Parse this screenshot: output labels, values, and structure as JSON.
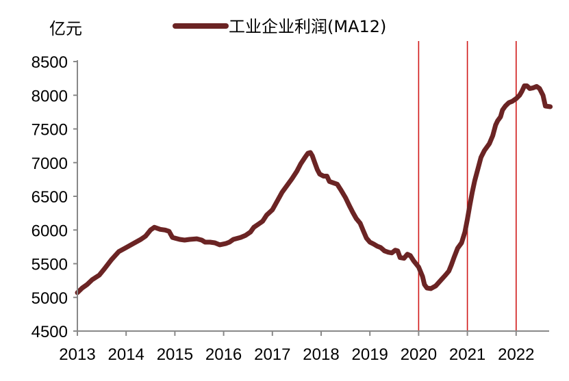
{
  "chart_data": {
    "type": "line",
    "y_unit_label": "亿元",
    "legend_position": "top",
    "grid": false,
    "ylim": [
      4500,
      8500
    ],
    "y_ticks": [
      "4500",
      "5000",
      "5500",
      "6000",
      "6500",
      "7000",
      "7500",
      "8000",
      "8500"
    ],
    "x_tick_labels": [
      "2013",
      "2014",
      "2015",
      "2016",
      "2017",
      "2018",
      "2019",
      "2020",
      "2021",
      "2022"
    ],
    "xlim": [
      2013,
      2022.7
    ],
    "vertical_markers": [
      2020,
      2021,
      2022
    ],
    "series": [
      {
        "name": "工业企业利润(MA12)",
        "color": "#6b2424",
        "points": [
          [
            2013.0,
            5070
          ],
          [
            2013.1,
            5140
          ],
          [
            2013.2,
            5190
          ],
          [
            2013.3,
            5260
          ],
          [
            2013.45,
            5330
          ],
          [
            2013.55,
            5420
          ],
          [
            2013.7,
            5560
          ],
          [
            2013.85,
            5680
          ],
          [
            2014.0,
            5740
          ],
          [
            2014.15,
            5800
          ],
          [
            2014.3,
            5860
          ],
          [
            2014.4,
            5910
          ],
          [
            2014.5,
            6000
          ],
          [
            2014.58,
            6040
          ],
          [
            2014.7,
            6010
          ],
          [
            2014.8,
            6000
          ],
          [
            2014.88,
            5980
          ],
          [
            2014.95,
            5890
          ],
          [
            2015.1,
            5860
          ],
          [
            2015.2,
            5850
          ],
          [
            2015.3,
            5860
          ],
          [
            2015.45,
            5870
          ],
          [
            2015.55,
            5850
          ],
          [
            2015.62,
            5820
          ],
          [
            2015.72,
            5820
          ],
          [
            2015.82,
            5810
          ],
          [
            2015.92,
            5780
          ],
          [
            2016.05,
            5800
          ],
          [
            2016.12,
            5820
          ],
          [
            2016.2,
            5860
          ],
          [
            2016.35,
            5890
          ],
          [
            2016.45,
            5920
          ],
          [
            2016.55,
            5970
          ],
          [
            2016.62,
            6040
          ],
          [
            2016.72,
            6090
          ],
          [
            2016.8,
            6130
          ],
          [
            2016.88,
            6220
          ],
          [
            2017.0,
            6300
          ],
          [
            2017.1,
            6430
          ],
          [
            2017.2,
            6560
          ],
          [
            2017.3,
            6660
          ],
          [
            2017.4,
            6760
          ],
          [
            2017.5,
            6870
          ],
          [
            2017.58,
            6980
          ],
          [
            2017.68,
            7090
          ],
          [
            2017.73,
            7140
          ],
          [
            2017.78,
            7150
          ],
          [
            2017.82,
            7100
          ],
          [
            2017.87,
            7000
          ],
          [
            2017.92,
            6900
          ],
          [
            2017.97,
            6830
          ],
          [
            2018.05,
            6800
          ],
          [
            2018.12,
            6800
          ],
          [
            2018.17,
            6720
          ],
          [
            2018.25,
            6700
          ],
          [
            2018.33,
            6680
          ],
          [
            2018.4,
            6600
          ],
          [
            2018.5,
            6480
          ],
          [
            2018.58,
            6360
          ],
          [
            2018.65,
            6260
          ],
          [
            2018.72,
            6170
          ],
          [
            2018.8,
            6100
          ],
          [
            2018.87,
            5980
          ],
          [
            2018.93,
            5880
          ],
          [
            2019.0,
            5820
          ],
          [
            2019.08,
            5790
          ],
          [
            2019.15,
            5760
          ],
          [
            2019.22,
            5740
          ],
          [
            2019.3,
            5690
          ],
          [
            2019.38,
            5670
          ],
          [
            2019.45,
            5660
          ],
          [
            2019.52,
            5700
          ],
          [
            2019.57,
            5690
          ],
          [
            2019.62,
            5590
          ],
          [
            2019.7,
            5580
          ],
          [
            2019.77,
            5640
          ],
          [
            2019.83,
            5620
          ],
          [
            2019.9,
            5540
          ],
          [
            2020.0,
            5450
          ],
          [
            2020.08,
            5310
          ],
          [
            2020.12,
            5190
          ],
          [
            2020.17,
            5140
          ],
          [
            2020.25,
            5130
          ],
          [
            2020.35,
            5170
          ],
          [
            2020.45,
            5250
          ],
          [
            2020.55,
            5330
          ],
          [
            2020.62,
            5390
          ],
          [
            2020.67,
            5480
          ],
          [
            2020.73,
            5600
          ],
          [
            2020.8,
            5730
          ],
          [
            2020.88,
            5810
          ],
          [
            2020.95,
            5970
          ],
          [
            2021.0,
            6160
          ],
          [
            2021.05,
            6370
          ],
          [
            2021.1,
            6560
          ],
          [
            2021.15,
            6730
          ],
          [
            2021.22,
            6920
          ],
          [
            2021.28,
            7080
          ],
          [
            2021.35,
            7180
          ],
          [
            2021.45,
            7280
          ],
          [
            2021.52,
            7400
          ],
          [
            2021.58,
            7560
          ],
          [
            2021.62,
            7620
          ],
          [
            2021.68,
            7680
          ],
          [
            2021.72,
            7780
          ],
          [
            2021.78,
            7840
          ],
          [
            2021.85,
            7890
          ],
          [
            2021.92,
            7910
          ],
          [
            2022.0,
            7950
          ],
          [
            2022.07,
            8000
          ],
          [
            2022.12,
            8060
          ],
          [
            2022.17,
            8140
          ],
          [
            2022.22,
            8140
          ],
          [
            2022.28,
            8100
          ],
          [
            2022.35,
            8110
          ],
          [
            2022.42,
            8130
          ],
          [
            2022.48,
            8100
          ],
          [
            2022.55,
            8000
          ],
          [
            2022.6,
            7840
          ],
          [
            2022.7,
            7830
          ]
        ]
      }
    ]
  }
}
